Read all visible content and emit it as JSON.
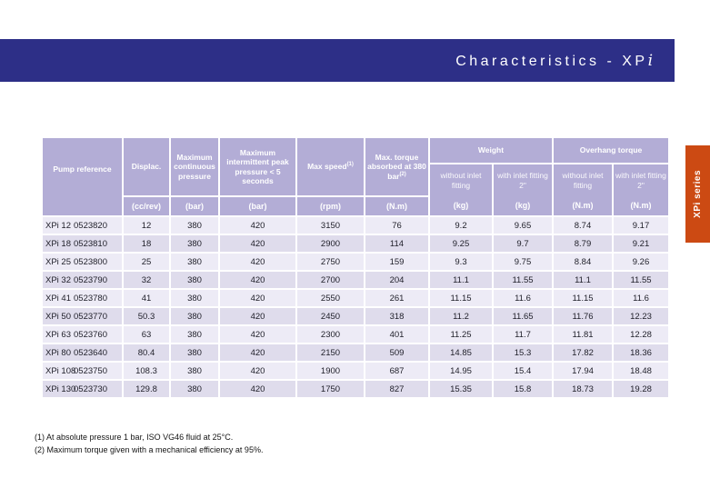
{
  "title": {
    "text": "Characteristics - XP",
    "italic_i": "i"
  },
  "side_tab": {
    "label": "XPi series"
  },
  "table": {
    "headers": {
      "pump_reference": "Pump reference",
      "displacement": "Displac.",
      "max_continuous_pressure": "Maximum continuous pressure",
      "max_intermittent_pressure": "Maximum intermittent peak pressure < 5 seconds",
      "max_speed": "Max speed",
      "max_speed_sup": "(1)",
      "max_torque": "Max. torque absorbed at 380 bar",
      "max_torque_sup": "(2)",
      "weight_group": "Weight",
      "overhang_group": "Overhang torque",
      "without_fitting": "without inlet fitting",
      "with_fitting": "with inlet fitting 2\"",
      "units": {
        "displacement": "(cc/rev)",
        "pressure": "(bar)",
        "speed": "(rpm)",
        "torque": "(N.m)",
        "weight": "(kg)",
        "overhang_torque": "(N.m)"
      }
    },
    "rows": [
      [
        "XPi 12",
        "0523820",
        "12",
        "380",
        "420",
        "3150",
        "76",
        "9.2",
        "9.65",
        "8.74",
        "9.17"
      ],
      [
        "XPi 18",
        "0523810",
        "18",
        "380",
        "420",
        "2900",
        "114",
        "9.25",
        "9.7",
        "8.79",
        "9.21"
      ],
      [
        "XPi 25",
        "0523800",
        "25",
        "380",
        "420",
        "2750",
        "159",
        "9.3",
        "9.75",
        "8.84",
        "9.26"
      ],
      [
        "XPi 32",
        "0523790",
        "32",
        "380",
        "420",
        "2700",
        "204",
        "11.1",
        "11.55",
        "11.1",
        "11.55"
      ],
      [
        "XPi 41",
        "0523780",
        "41",
        "380",
        "420",
        "2550",
        "261",
        "11.15",
        "11.6",
        "11.15",
        "11.6"
      ],
      [
        "XPi 50",
        "0523770",
        "50.3",
        "380",
        "420",
        "2450",
        "318",
        "11.2",
        "11.65",
        "11.76",
        "12.23"
      ],
      [
        "XPi 63",
        "0523760",
        "63",
        "380",
        "420",
        "2300",
        "401",
        "11.25",
        "11.7",
        "11.81",
        "12.28"
      ],
      [
        "XPi 80",
        "0523640",
        "80.4",
        "380",
        "420",
        "2150",
        "509",
        "14.85",
        "15.3",
        "17.82",
        "18.36"
      ],
      [
        "XPi 108",
        "0523750",
        "108.3",
        "380",
        "420",
        "1900",
        "687",
        "14.95",
        "15.4",
        "17.94",
        "18.48"
      ],
      [
        "XPi 130",
        "0523730",
        "129.8",
        "380",
        "420",
        "1750",
        "827",
        "15.35",
        "15.8",
        "18.73",
        "19.28"
      ]
    ]
  },
  "footnotes": [
    "(1) At absolute pressure 1 bar, ISO VG46 fluid at 25°C.",
    "(2) Maximum torque given with a mechanical efficiency at 95%."
  ],
  "colors": {
    "navy": "#2d2f87",
    "header_lavender": "#b3add6",
    "row_light": "#edebf6",
    "row_dark": "#dfdcec",
    "tab_orange": "#cc4a13"
  }
}
